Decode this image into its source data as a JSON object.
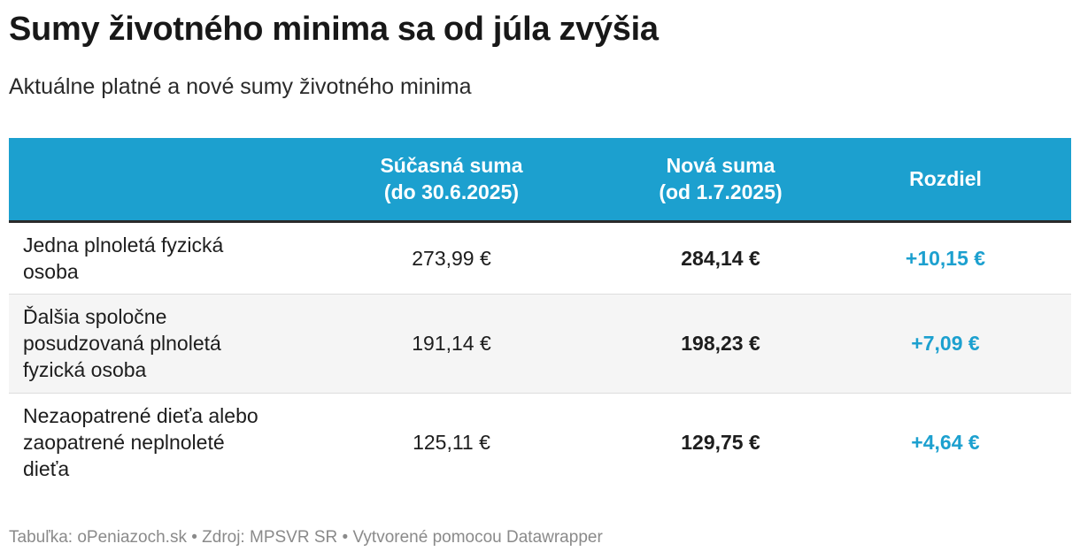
{
  "title": "Sumy životného minima sa od júla zvýšia",
  "subtitle": "Aktuálne platné a nové sumy životného minima",
  "chart_data": {
    "type": "table",
    "columns": [
      {
        "key": "label",
        "header": [
          "",
          ""
        ]
      },
      {
        "key": "current",
        "header": [
          "Súčasná suma",
          "(do 30.6.2025)"
        ]
      },
      {
        "key": "new",
        "header": [
          "Nová suma",
          "(od 1.7.2025)"
        ]
      },
      {
        "key": "diff",
        "header": [
          "Rozdiel",
          ""
        ]
      }
    ],
    "rows": [
      {
        "label": "Jedna plnoletá fyzická osoba",
        "current": "273,99 €",
        "new": "284,14 €",
        "diff": "+10,15 €"
      },
      {
        "label": "Ďalšia spoločne posudzovaná plnoletá fyzická osoba",
        "current": "191,14 €",
        "new": "198,23 €",
        "diff": "+7,09 €"
      },
      {
        "label": "Nezaopatrené dieťa alebo zaopatrené neplnoleté dieťa",
        "current": "125,11 €",
        "new": "129,75 €",
        "diff": "+4,64 €"
      }
    ]
  },
  "footer": "Tabuľka: oPeniazoch.sk • Zdroj: MPSVR SR • Vytvorené pomocou Datawrapper",
  "colors": {
    "header_bg": "#1ca0cf",
    "diff_text": "#1ca0cf",
    "alt_row": "#f5f5f5"
  }
}
